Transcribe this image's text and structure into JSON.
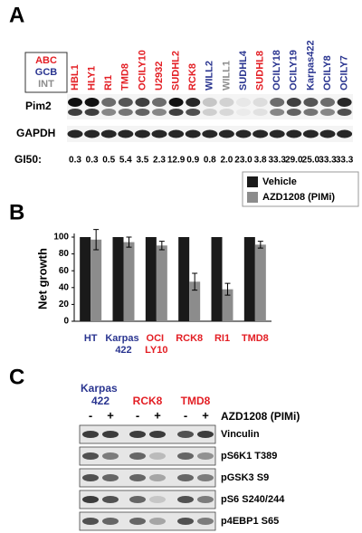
{
  "panel_a": {
    "label": "A",
    "legend": [
      {
        "text": "ABC",
        "color": "#e31e24"
      },
      {
        "text": "GCB",
        "color": "#2a3590"
      },
      {
        "text": "INT",
        "color": "#8c8c8c"
      }
    ],
    "rows": [
      "Pim2",
      "GAPDH"
    ],
    "gi50_label": "GI50:",
    "cell_lines": [
      {
        "name": "HBL1",
        "color": "#e31e24",
        "gi50": "0.3"
      },
      {
        "name": "HLY1",
        "color": "#e31e24",
        "gi50": "0.3"
      },
      {
        "name": "RI1",
        "color": "#e31e24",
        "gi50": "0.5"
      },
      {
        "name": "TMD8",
        "color": "#e31e24",
        "gi50": "5.4"
      },
      {
        "name": "OCILY10",
        "color": "#e31e24",
        "gi50": "3.5"
      },
      {
        "name": "U2932",
        "color": "#e31e24",
        "gi50": "2.3"
      },
      {
        "name": "SUDHL2",
        "color": "#e31e24",
        "gi50": "12.9"
      },
      {
        "name": "RCK8",
        "color": "#e31e24",
        "gi50": "0.9"
      },
      {
        "name": "WILL2",
        "color": "#2a3590",
        "gi50": "0.8"
      },
      {
        "name": "WILL1",
        "color": "#8c8c8c",
        "gi50": "2.0"
      },
      {
        "name": "SUDHL4",
        "color": "#2a3590",
        "gi50": "23.0"
      },
      {
        "name": "SUDHL8",
        "color": "#e31e24",
        "gi50": "3.8"
      },
      {
        "name": "OCILY18",
        "color": "#2a3590",
        "gi50": "33.3"
      },
      {
        "name": "OCILY19",
        "color": "#2a3590",
        "gi50": "29.0"
      },
      {
        "name": "Karpas422",
        "color": "#2a3590",
        "gi50": "25.0"
      },
      {
        "name": "OCILY8",
        "color": "#2a3590",
        "gi50": "33.3"
      },
      {
        "name": "OCILY7",
        "color": "#2a3590",
        "gi50": "33.3"
      }
    ]
  },
  "chart_data": {
    "type": "bar",
    "panel_label": "B",
    "ylabel": "Net growth",
    "categories": [
      "HT",
      "Karpas 422",
      "OCI LY10",
      "RCK8",
      "RI1",
      "TMD8"
    ],
    "category_colors": [
      "#2a3590",
      "#2a3590",
      "#e31e24",
      "#e31e24",
      "#e31e24",
      "#e31e24"
    ],
    "series": [
      {
        "name": "Vehicle",
        "color": "#1a1a1a",
        "values": [
          100,
          100,
          100,
          100,
          100,
          100
        ]
      },
      {
        "name": "AZD1208 (PIMi)",
        "color": "#8c8c8c",
        "values": [
          97,
          94,
          90,
          47,
          38,
          91
        ],
        "errors": [
          12,
          6,
          5,
          10,
          7,
          4
        ]
      }
    ],
    "ylim": [
      0,
      100
    ],
    "yticks": [
      0,
      20,
      40,
      60,
      80,
      100
    ],
    "legend": "top-right"
  },
  "panel_c": {
    "label": "C",
    "groups": [
      {
        "name": "Karpas 422",
        "color": "#2a3590"
      },
      {
        "name": "RCK8",
        "color": "#e31e24"
      },
      {
        "name": "TMD8",
        "color": "#e31e24"
      }
    ],
    "signs": [
      "-",
      "+"
    ],
    "treatment": "AZD1208 (PIMi)",
    "rows": [
      "Vinculin",
      "pS6K1 T389",
      "pGSK3 S9",
      "pS6 S240/244",
      "p4EBP1 S65"
    ]
  }
}
